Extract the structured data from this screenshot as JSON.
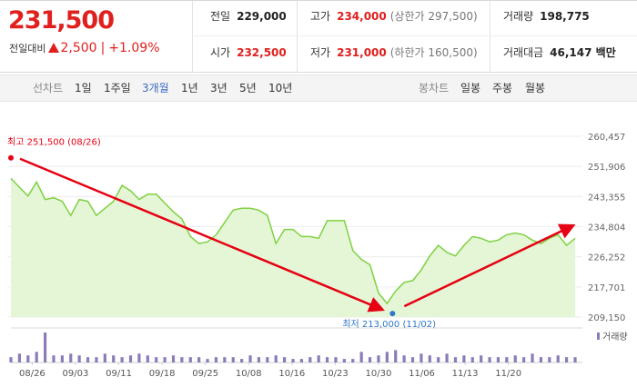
{
  "price": {
    "current": "231,500",
    "change_label": "전일대비",
    "change": "2,500",
    "change_pct": "+1.09%"
  },
  "stats": [
    {
      "label": "전일",
      "value": "229,000",
      "color": "#222222",
      "sub": ""
    },
    {
      "label": "고가",
      "value": "234,000",
      "color": "#e0201e",
      "sub": "(상한가 297,500)"
    },
    {
      "label": "거래량",
      "value": "198,775",
      "color": "#222222",
      "sub": ""
    },
    {
      "label": "시가",
      "value": "232,500",
      "color": "#e0201e",
      "sub": ""
    },
    {
      "label": "저가",
      "value": "231,000",
      "color": "#e0201e",
      "sub": "(하한가 160,500)"
    },
    {
      "label": "거래대금",
      "value": "46,147 백만",
      "color": "#222222",
      "sub": ""
    }
  ],
  "tabs": {
    "line_chart": "선차트",
    "day1": "1일",
    "week1": "1주일",
    "month3": "3개월",
    "year1": "1년",
    "year3": "3년",
    "year5": "5년",
    "year10": "10년",
    "candle_chart": "봉차트",
    "daily": "일봉",
    "weekly": "주봉",
    "monthly": "월봉",
    "active": "3개월"
  },
  "chart_data": {
    "type": "area",
    "y_ticks": [
      "260,457",
      "251,906",
      "243,355",
      "234,804",
      "226,252",
      "217,701",
      "209,150"
    ],
    "y_range": [
      209150,
      260457
    ],
    "x_labels": [
      "08/26",
      "09/03",
      "09/11",
      "09/18",
      "09/25",
      "10/08",
      "10/16",
      "10/23",
      "10/30",
      "11/06",
      "11/13",
      "11/20"
    ],
    "high_label": "최고 251,500 (08/26)",
    "low_label": "최저 213,000 (11/02)",
    "volume_label": "거래량",
    "line_color": "#7fd141",
    "area_color": "#e4f6d6",
    "annotation_color": "#e60012",
    "low_marker_color": "#2f78c5",
    "prices": [
      248500,
      246000,
      243500,
      247500,
      242500,
      243000,
      242000,
      238000,
      242500,
      242000,
      238000,
      240000,
      242000,
      246500,
      245000,
      242500,
      244000,
      244000,
      241500,
      239000,
      237000,
      232000,
      230000,
      230500,
      232500,
      236000,
      239500,
      240000,
      240000,
      239500,
      238000,
      230000,
      234000,
      234000,
      232000,
      232000,
      231500,
      236500,
      236500,
      236500,
      228000,
      225500,
      224000,
      216000,
      213000,
      216500,
      219000,
      219500,
      222500,
      226500,
      229500,
      227500,
      226500,
      229500,
      232000,
      231500,
      230500,
      231000,
      232500,
      233000,
      232500,
      231000,
      230000,
      231500,
      232500,
      229500,
      231500
    ],
    "volumes": [
      3,
      5,
      4,
      6,
      17,
      4,
      4,
      5,
      4,
      3,
      3,
      5,
      4,
      3,
      4,
      5,
      4,
      3,
      3,
      4,
      3,
      3,
      3,
      2,
      3,
      3,
      3,
      2,
      4,
      3,
      3,
      4,
      3,
      2,
      2,
      3,
      4,
      3,
      3,
      2,
      2,
      6,
      3,
      4,
      6,
      7,
      4,
      3,
      5,
      4,
      3,
      5,
      3,
      4,
      3,
      4,
      3,
      3,
      3,
      4,
      3,
      5,
      3,
      3,
      4,
      3,
      3
    ]
  }
}
